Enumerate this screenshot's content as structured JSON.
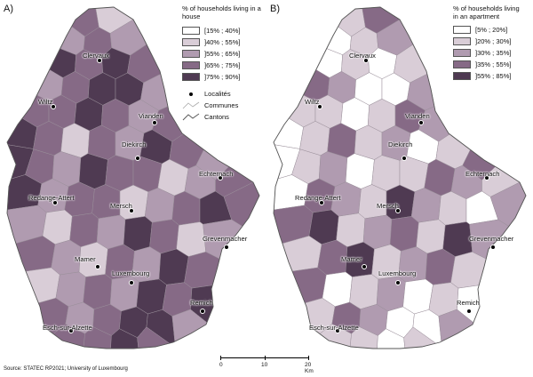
{
  "source": "Source: STATEC RP2021; University of Luxembourg",
  "scale": {
    "labels": [
      "0",
      "10",
      "20 Km"
    ]
  },
  "symbols": {
    "locality": "Localités",
    "communes": "Communes",
    "cantons": "Cantons"
  },
  "panels": [
    {
      "label": "A)",
      "legend_title": "% of households living in a house",
      "classes": [
        {
          "label": "[15% ; 40%]",
          "color": "#ffffff"
        },
        {
          "label": "]40% ; 55%]",
          "color": "#d9cdd7"
        },
        {
          "label": "]55% ; 65%]",
          "color": "#b09bb0"
        },
        {
          "label": "]65% ; 75%]",
          "color": "#866a86"
        },
        {
          "label": "]75% ; 90%]",
          "color": "#4f3a52"
        }
      ]
    },
    {
      "label": "B)",
      "legend_title": "% of households living in an apartment",
      "classes": [
        {
          "label": "[5% ; 20%]",
          "color": "#ffffff"
        },
        {
          "label": "]20% ; 30%]",
          "color": "#d9cdd7"
        },
        {
          "label": "]30% ; 35%]",
          "color": "#b09bb0"
        },
        {
          "label": "]35% ; 55%]",
          "color": "#866a86"
        },
        {
          "label": "]55% ; 85%]",
          "color": "#4f3a52"
        }
      ]
    }
  ],
  "places": [
    {
      "name": "Clervaux"
    },
    {
      "name": "Wiltz"
    },
    {
      "name": "Vianden"
    },
    {
      "name": "Diekirch"
    },
    {
      "name": "Echternach"
    },
    {
      "name": "Redange-Attert"
    },
    {
      "name": "Mersch"
    },
    {
      "name": "Grevenmacher"
    },
    {
      "name": "Mamer"
    },
    {
      "name": "Luxembourg"
    },
    {
      "name": "Remich"
    },
    {
      "name": "Esch-sur-Alzette"
    }
  ],
  "map_a_classes": [
    3,
    1,
    2,
    3,
    2,
    4,
    3,
    4,
    3,
    2,
    3,
    4,
    4,
    2,
    3,
    3,
    4,
    3,
    2,
    3,
    4,
    3,
    1,
    3,
    2,
    4,
    3,
    2,
    4,
    3,
    2,
    4,
    3,
    3,
    1,
    2,
    3,
    4,
    2,
    3,
    3,
    1,
    2,
    3,
    4,
    3,
    2,
    1,
    3,
    2,
    4,
    3,
    1,
    2,
    3,
    2,
    1,
    3,
    2,
    4
  ],
  "map_b_classes": [
    1,
    3,
    0,
    1,
    2,
    0,
    1,
    0,
    1,
    3,
    2,
    0,
    0,
    2,
    1,
    1,
    0,
    1,
    3,
    2,
    0,
    1,
    3,
    1,
    2,
    0,
    1,
    3,
    0,
    1,
    2,
    0,
    1,
    1,
    3,
    2,
    1,
    0,
    3,
    2,
    1,
    4,
    2,
    1,
    0,
    2,
    3,
    4,
    1,
    2,
    3,
    1,
    4,
    2,
    1,
    3,
    4,
    1,
    2,
    3
  ]
}
